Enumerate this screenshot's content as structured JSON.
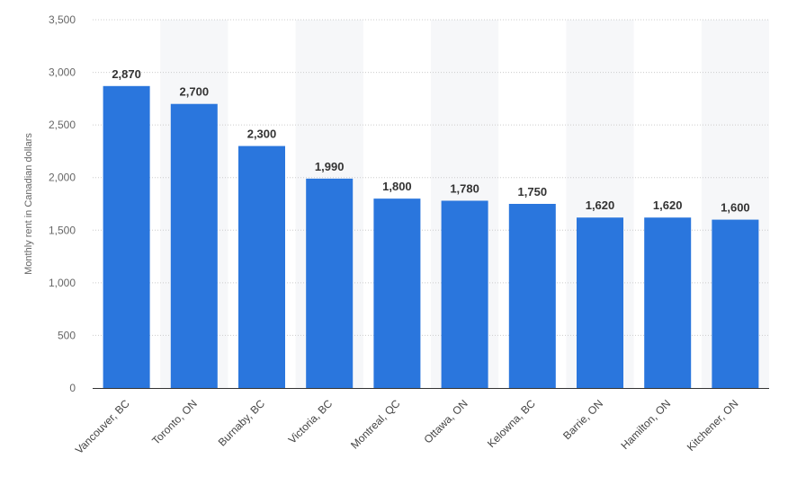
{
  "chart_data": {
    "type": "bar",
    "categories": [
      "Vancouver, BC",
      "Toronto, ON",
      "Burnaby, BC",
      "Victoria, BC",
      "Montreal, QC",
      "Ottawa, ON",
      "Kelowna, BC",
      "Barrie, ON",
      "Hamilton, ON",
      "Kitchener, ON"
    ],
    "values": [
      2870,
      2700,
      2300,
      1990,
      1800,
      1780,
      1750,
      1620,
      1620,
      1600
    ],
    "value_labels": [
      "2,870",
      "2,700",
      "2,300",
      "1,990",
      "1,800",
      "1,780",
      "1,750",
      "1,620",
      "1,620",
      "1,600"
    ],
    "yticks": [
      0,
      500,
      1000,
      1500,
      2000,
      2500,
      3000,
      3500
    ],
    "ytick_labels": [
      "0",
      "500",
      "1,000",
      "1,500",
      "2,000",
      "2,500",
      "3,000",
      "3,500"
    ],
    "ylim": [
      0,
      3500
    ],
    "ylabel": "Monthly rent in Canadian dollars",
    "xlabel": "",
    "title": "",
    "grid": "horizontal dotted",
    "colors": {
      "bar": "#2a76dd",
      "band": "#f6f7f9",
      "grid": "#cccccc",
      "axis": "#333333"
    }
  }
}
